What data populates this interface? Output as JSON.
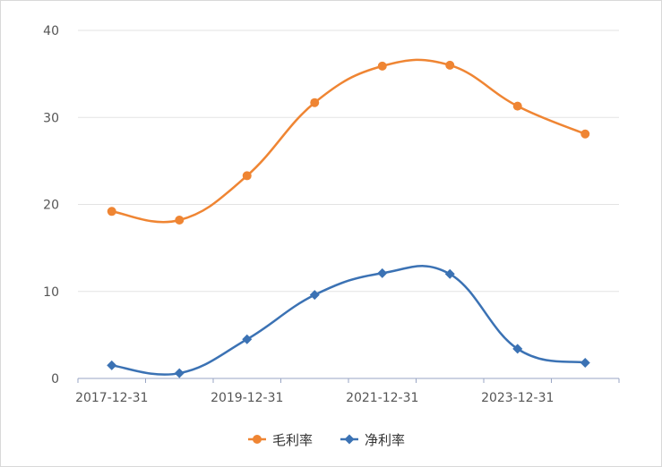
{
  "chart_data": {
    "type": "line",
    "x": [
      "2017-12-31",
      "2018-12-31",
      "2019-12-31",
      "2020-12-31",
      "2021-12-31",
      "2022-12-31",
      "2023-12-31",
      "2024-12-31"
    ],
    "x_tick_labels": [
      "2017-12-31",
      "2019-12-31",
      "2021-12-31",
      "2023-12-31"
    ],
    "y_ticks": [
      0,
      10,
      20,
      30,
      40
    ],
    "ylim": [
      0,
      40
    ],
    "grid": "horizontal",
    "legend_position": "bottom-center",
    "series": [
      {
        "name": "毛利率",
        "color": "#ef8533",
        "marker": "circle",
        "values": [
          19.2,
          18.2,
          23.3,
          31.7,
          35.9,
          36.0,
          31.3,
          28.1
        ]
      },
      {
        "name": "净利率",
        "color": "#3b72b4",
        "marker": "diamond",
        "values": [
          1.5,
          0.6,
          4.5,
          9.6,
          12.1,
          12.0,
          3.4,
          1.8
        ]
      }
    ]
  }
}
